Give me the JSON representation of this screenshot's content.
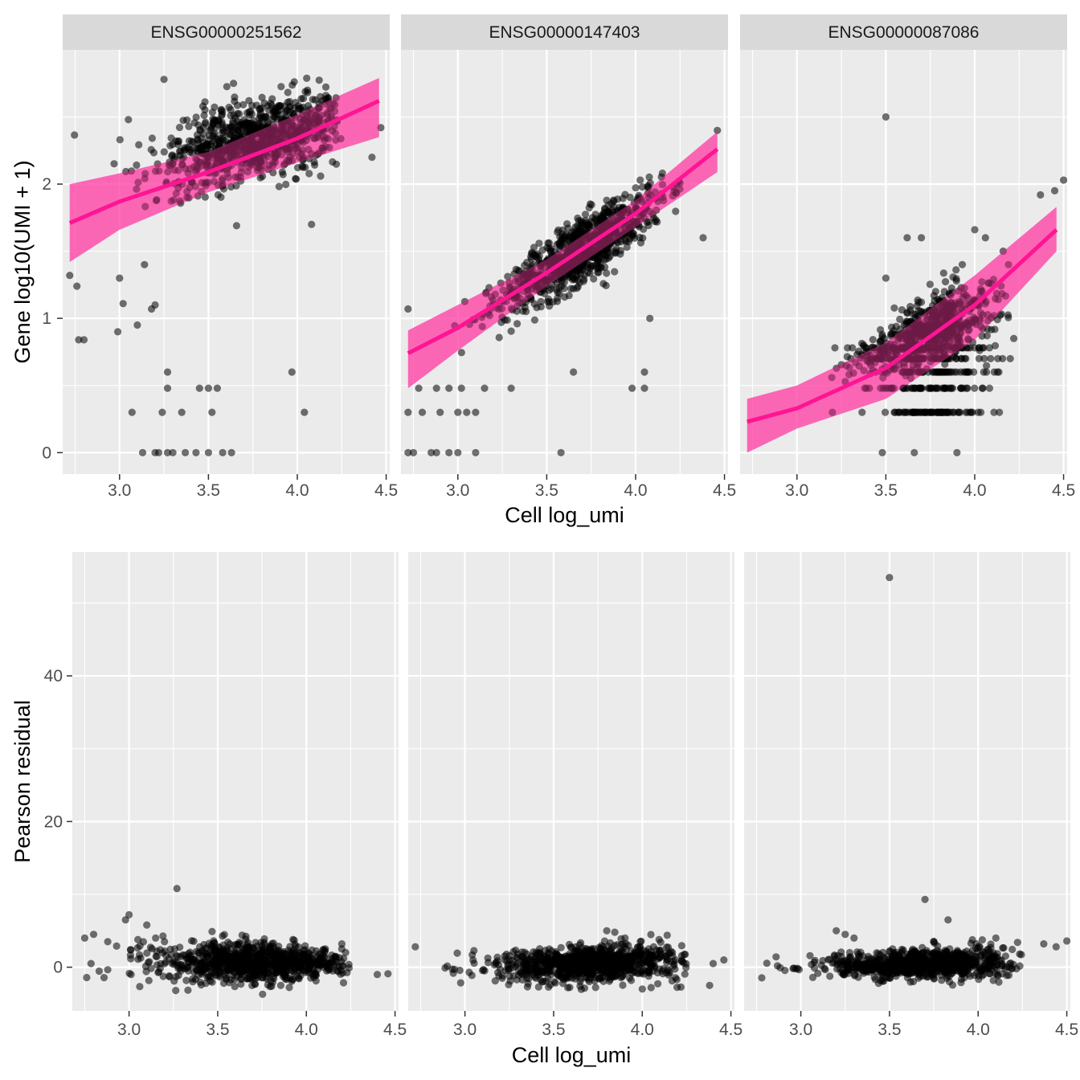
{
  "chart_data": [
    {
      "type": "scatter",
      "ylabel": "Gene log10(UMI + 1)",
      "xlabel": "Cell log_umi",
      "xlim": [
        2.68,
        4.52
      ],
      "ylim": [
        -0.16,
        3.0
      ],
      "x_ticks": [
        "3.0",
        "3.5",
        "4.0",
        "4.5"
      ],
      "y_ticks": [
        "0",
        "1",
        "2"
      ],
      "grid": true,
      "panels": [
        {
          "strip": "ENSG00000251562",
          "fit": {
            "x": [
              2.72,
              3.0,
              3.5,
              4.0,
              4.46
            ],
            "y": [
              1.71,
              1.87,
              2.09,
              2.34,
              2.62
            ],
            "lower": [
              1.42,
              1.66,
              1.94,
              2.16,
              2.35
            ],
            "upper": [
              2.0,
              2.08,
              2.24,
              2.52,
              2.79
            ]
          },
          "cloud": {
            "x_range": [
              2.72,
              4.25
            ],
            "y_at_x_low": [
              1.75,
              2.3
            ],
            "y_at_x_high": [
              2.2,
              2.75
            ],
            "center": [
              3.75,
              2.25
            ]
          },
          "outliers": [
            [
              2.72,
              1.32
            ],
            [
              2.77,
              0.84
            ],
            [
              2.8,
              0.84
            ],
            [
              2.76,
              1.24
            ],
            [
              2.99,
              0.9
            ],
            [
              3.0,
              1.3
            ],
            [
              3.02,
              1.11
            ],
            [
              3.07,
              0.3
            ],
            [
              3.1,
              0.95
            ],
            [
              3.13,
              0.0
            ],
            [
              3.18,
              1.07
            ],
            [
              3.2,
              1.1
            ],
            [
              3.2,
              0.0
            ],
            [
              3.22,
              0.0
            ],
            [
              3.24,
              0.3
            ],
            [
              3.27,
              0.0
            ],
            [
              3.27,
              0.6
            ],
            [
              3.27,
              0.48
            ],
            [
              3.3,
              0.0
            ],
            [
              3.35,
              0.3
            ],
            [
              3.37,
              0.0
            ],
            [
              3.43,
              0.0
            ],
            [
              3.45,
              0.48
            ],
            [
              3.5,
              0.0
            ],
            [
              3.5,
              0.48
            ],
            [
              3.52,
              0.3
            ],
            [
              3.55,
              0.48
            ],
            [
              3.58,
              0.0
            ],
            [
              3.63,
              0.0
            ],
            [
              3.97,
              0.6
            ],
            [
              4.04,
              0.3
            ],
            [
              4.08,
              1.7
            ],
            [
              4.42,
              2.2
            ],
            [
              4.47,
              2.42
            ],
            [
              3.25,
              2.78
            ],
            [
              3.05,
              2.48
            ],
            [
              3.14,
              1.4
            ]
          ]
        },
        {
          "strip": "ENSG00000147403",
          "fit": {
            "x": [
              2.72,
              3.0,
              3.5,
              4.0,
              4.46
            ],
            "y": [
              0.74,
              0.93,
              1.34,
              1.78,
              2.26
            ],
            "lower": [
              0.48,
              0.76,
              1.24,
              1.68,
              2.09
            ],
            "upper": [
              0.91,
              1.1,
              1.44,
              1.88,
              2.39
            ]
          },
          "cloud": {
            "x_range": [
              2.9,
              4.25
            ],
            "y_at_x_low": [
              0.65,
              1.05
            ],
            "y_at_x_high": [
              1.75,
              2.2
            ],
            "center": [
              3.7,
              1.6
            ]
          },
          "outliers": [
            [
              2.72,
              0.0
            ],
            [
              2.75,
              0.0
            ],
            [
              2.85,
              0.0
            ],
            [
              2.88,
              0.0
            ],
            [
              2.95,
              0.0
            ],
            [
              3.0,
              0.0
            ],
            [
              3.1,
              0.0
            ],
            [
              3.58,
              0.0
            ],
            [
              2.72,
              0.3
            ],
            [
              2.8,
              0.3
            ],
            [
              2.9,
              0.3
            ],
            [
              3.0,
              0.3
            ],
            [
              3.05,
              0.3
            ],
            [
              3.1,
              0.3
            ],
            [
              2.78,
              0.48
            ],
            [
              2.88,
              0.48
            ],
            [
              2.95,
              0.48
            ],
            [
              3.02,
              0.48
            ],
            [
              3.15,
              0.48
            ],
            [
              3.3,
              0.48
            ],
            [
              2.72,
              1.07
            ],
            [
              3.65,
              0.6
            ],
            [
              3.98,
              0.48
            ],
            [
              4.05,
              0.48
            ],
            [
              4.05,
              0.6
            ],
            [
              4.08,
              1.0
            ],
            [
              4.38,
              1.6
            ],
            [
              4.46,
              2.4
            ]
          ]
        },
        {
          "strip": "ENSG00000087086",
          "fit": {
            "x": [
              2.72,
              3.0,
              3.5,
              4.0,
              4.46
            ],
            "y": [
              0.23,
              0.33,
              0.63,
              1.1,
              1.66
            ],
            "lower": [
              0.0,
              0.18,
              0.4,
              0.84,
              1.5
            ],
            "upper": [
              0.4,
              0.5,
              0.82,
              1.32,
              1.83
            ]
          },
          "cloud": {
            "x_range": [
              3.15,
              4.2
            ],
            "y_at_x_low": [
              0.48,
              0.7
            ],
            "y_at_x_high": [
              0.85,
              1.45
            ],
            "center": [
              3.75,
              0.95
            ]
          },
          "outliers": [
            [
              3.5,
              2.5
            ],
            [
              3.5,
              1.3
            ],
            [
              3.78,
              1.2
            ],
            [
              4.45,
              1.95
            ],
            [
              4.5,
              2.03
            ],
            [
              4.37,
              1.92
            ],
            [
              3.62,
              1.6
            ],
            [
              3.7,
              1.6
            ],
            [
              3.93,
              1.4
            ],
            [
              4.0,
              1.66
            ],
            [
              4.06,
              1.6
            ],
            [
              4.16,
              1.5
            ],
            [
              4.19,
              1.4
            ],
            [
              3.48,
              0.0
            ],
            [
              3.66,
              0.0
            ],
            [
              3.9,
              0.0
            ],
            [
              3.85,
              0.3
            ],
            [
              3.95,
              0.3
            ],
            [
              4.2,
              0.7
            ],
            [
              4.22,
              0.85
            ]
          ]
        }
      ]
    },
    {
      "type": "scatter",
      "ylabel": "Pearson residual",
      "xlabel": "Cell log_umi",
      "xlim": [
        2.68,
        4.52
      ],
      "ylim": [
        -6,
        57
      ],
      "x_ticks": [
        "3.0",
        "3.5",
        "4.0",
        "4.5"
      ],
      "y_ticks": [
        "0",
        "20",
        "40"
      ],
      "grid": true,
      "panels": [
        {
          "cloud": {
            "x_range": [
              2.72,
              4.25
            ],
            "y_at_x_low": [
              -2,
              4
            ],
            "y_at_x_high": [
              -1.5,
              2.5
            ],
            "center": [
              3.7,
              0.5
            ]
          },
          "outliers": [
            [
              3.27,
              10.8
            ],
            [
              3.0,
              7.2
            ],
            [
              2.98,
              6.5
            ],
            [
              3.1,
              5.8
            ],
            [
              2.8,
              4.5
            ],
            [
              2.75,
              4.0
            ],
            [
              2.88,
              3.5
            ],
            [
              3.05,
              3.8
            ],
            [
              4.4,
              -1.0
            ],
            [
              4.46,
              -0.9
            ],
            [
              3.15,
              4.0
            ],
            [
              3.2,
              3.5
            ],
            [
              4.2,
              3.2
            ]
          ]
        },
        {
          "cloud": {
            "x_range": [
              2.72,
              4.25
            ],
            "y_at_x_low": [
              -2,
              1.5
            ],
            "y_at_x_high": [
              -1.5,
              3.5
            ],
            "center": [
              3.7,
              1.0
            ]
          },
          "outliers": [
            [
              2.72,
              2.8
            ],
            [
              4.38,
              -2.5
            ],
            [
              4.46,
              1.0
            ],
            [
              4.4,
              0.5
            ],
            [
              3.58,
              -2.8
            ],
            [
              3.65,
              -2.0
            ],
            [
              4.0,
              -3.0
            ],
            [
              4.05,
              -2.8
            ],
            [
              3.8,
              5.0
            ]
          ]
        },
        {
          "cloud": {
            "x_range": [
              2.72,
              4.25
            ],
            "y_at_x_low": [
              -1.2,
              1.0
            ],
            "y_at_x_high": [
              -1.5,
              3.0
            ],
            "center": [
              3.7,
              0.3
            ]
          },
          "outliers": [
            [
              3.5,
              53.5
            ],
            [
              3.7,
              9.3
            ],
            [
              3.83,
              6.5
            ],
            [
              4.37,
              3.2
            ],
            [
              4.44,
              2.8
            ],
            [
              4.5,
              3.6
            ],
            [
              3.2,
              5.0
            ],
            [
              3.25,
              4.5
            ],
            [
              3.3,
              4.0
            ],
            [
              4.1,
              4.0
            ]
          ]
        }
      ]
    }
  ]
}
